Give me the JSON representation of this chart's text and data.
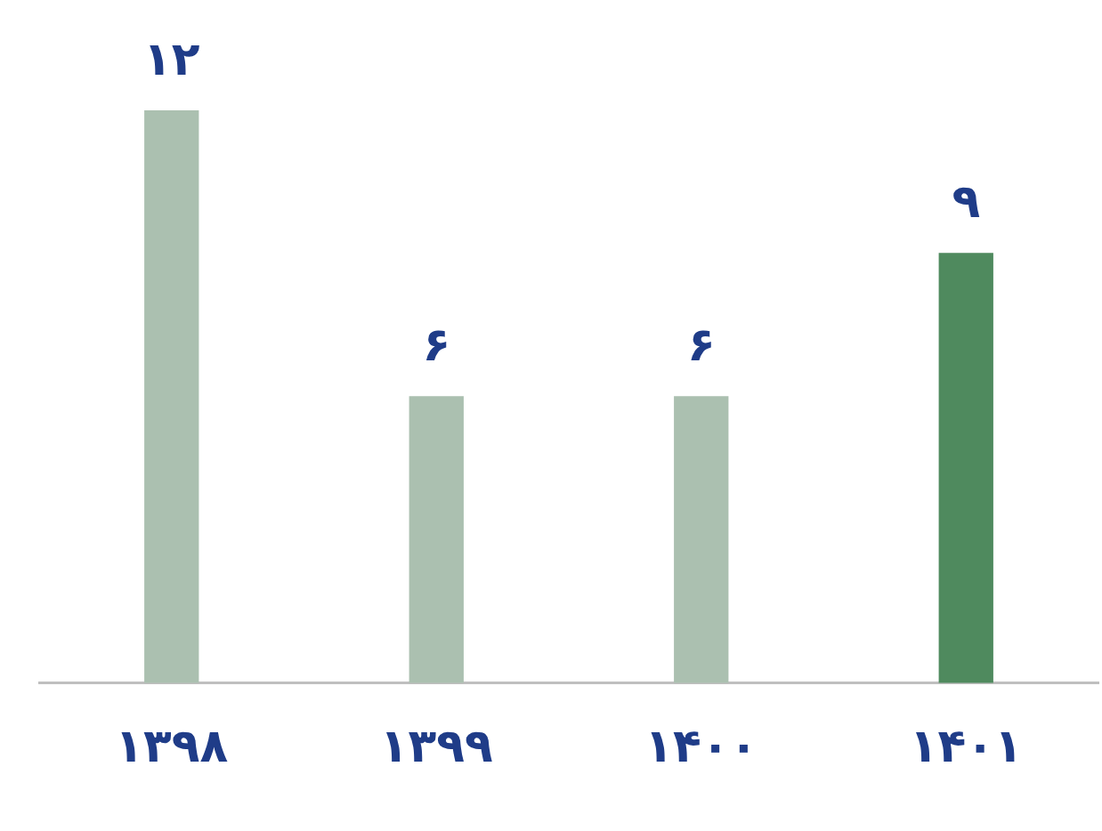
{
  "chart_data": {
    "type": "bar",
    "categories": [
      "۱۳۹۸",
      "۱۳۹۹",
      "۱۴۰۰",
      "۱۴۰۱"
    ],
    "values": [
      12,
      6,
      6,
      9
    ],
    "value_labels": [
      "۱۲",
      "۶",
      "۶",
      "۹"
    ],
    "colors": [
      "#abc0b0",
      "#abc0b0",
      "#abc0b0",
      "#4f8a5e"
    ],
    "grid": false,
    "legend": false,
    "tick_labels": "x"
  }
}
